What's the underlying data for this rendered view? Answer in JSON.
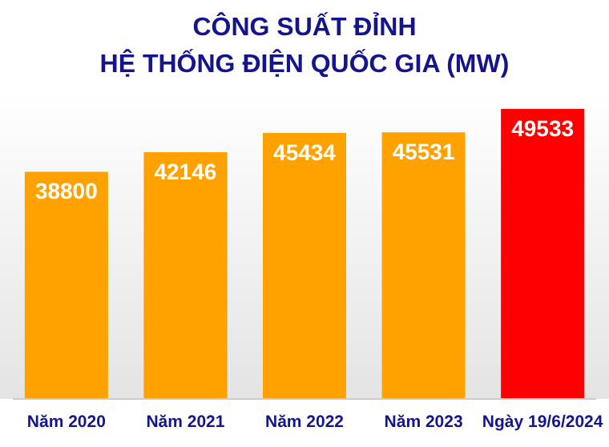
{
  "chart_data": {
    "type": "bar",
    "title": "CÔNG SUẤT ĐỈNH\nHỆ THỐNG ĐIỆN QUỐC GIA (MW)",
    "categories": [
      "Năm 2020",
      "Năm 2021",
      "Năm 2022",
      "Năm 2023",
      "Ngày 19/6/2024"
    ],
    "values": [
      38800,
      42146,
      45434,
      45531,
      49533
    ],
    "colors": [
      "#ffa200",
      "#ffa200",
      "#ffa200",
      "#ffa200",
      "#ff0000"
    ],
    "data_labels": true
  }
}
